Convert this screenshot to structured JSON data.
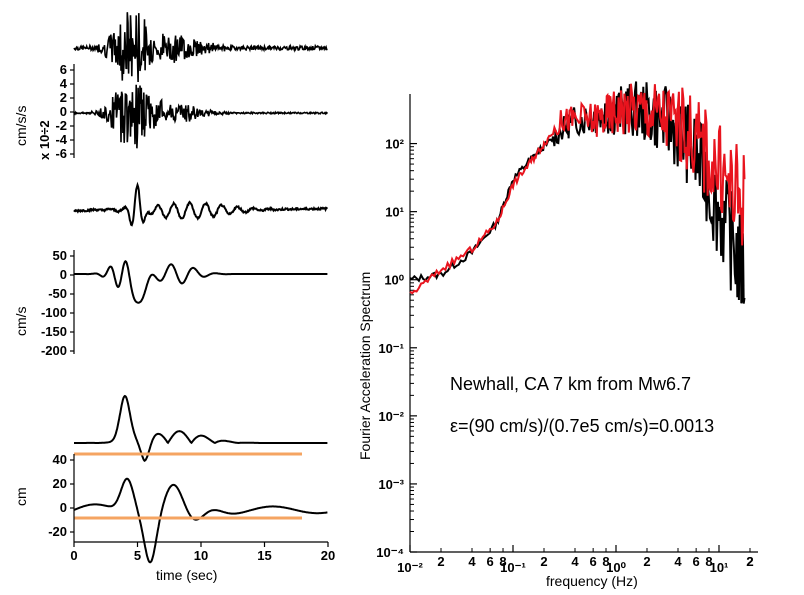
{
  "left_panel": {
    "accel_ylabel": "cm/s/s",
    "accel_scale": "x 10÷2",
    "accel_ticks": [
      "6",
      "4",
      "2",
      "0",
      "-2",
      "-4",
      "-6"
    ],
    "vel_ylabel": "cm/s",
    "vel_ticks": [
      "50",
      "0",
      "-50",
      "-100",
      "-150",
      "-200"
    ],
    "disp_ylabel": "cm",
    "disp_ticks": [
      "40",
      "20",
      "0",
      "-20"
    ],
    "time_ticks": [
      "0",
      "5",
      "10",
      "15",
      "20"
    ],
    "xlabel": "time (sec)"
  },
  "chart_data": {
    "type": "line",
    "ylabel": "Fourier Acceleration Spectrum",
    "xlabel": "frequency (Hz)",
    "xscale": "log",
    "yscale": "log",
    "xlim": [
      0.01,
      20
    ],
    "ylim": [
      0.0001,
      500
    ],
    "y_tick_labels": [
      "10²",
      "10¹",
      "10⁰",
      "10⁻¹",
      "10⁻²",
      "10⁻³",
      "10⁻⁴"
    ],
    "x_decade_labels": [
      "10⁻²",
      "10⁻¹",
      "10⁰",
      "10¹"
    ],
    "x_minor_labels": [
      "2",
      "4",
      "6",
      "8"
    ],
    "series": [
      {
        "color": "#000000",
        "x": [
          0.01,
          0.02,
          0.04,
          0.07,
          0.1,
          0.15,
          0.2,
          0.3,
          0.4,
          0.6,
          0.8,
          1,
          1.3,
          1.8,
          2.5,
          3.5,
          5,
          7,
          10,
          14,
          18
        ],
        "y": [
          1,
          1.2,
          2.5,
          7,
          30,
          60,
          90,
          160,
          220,
          250,
          280,
          300,
          320,
          300,
          250,
          180,
          100,
          40,
          10,
          3,
          1
        ]
      },
      {
        "color": "#e8141e",
        "x": [
          0.01,
          0.02,
          0.04,
          0.07,
          0.1,
          0.15,
          0.2,
          0.3,
          0.4,
          0.6,
          0.8,
          1,
          1.3,
          1.8,
          2.5,
          3.5,
          5,
          7,
          10,
          14,
          18
        ],
        "y": [
          0.6,
          1.4,
          2.8,
          7,
          25,
          55,
          100,
          220,
          230,
          220,
          250,
          300,
          320,
          310,
          280,
          220,
          160,
          90,
          40,
          20,
          15
        ]
      }
    ],
    "annotations": [
      "Newhall, CA 7 km from Mw6.7",
      "ε=(90 cm/s)/(0.7e5 cm/s)=0.0013"
    ]
  }
}
